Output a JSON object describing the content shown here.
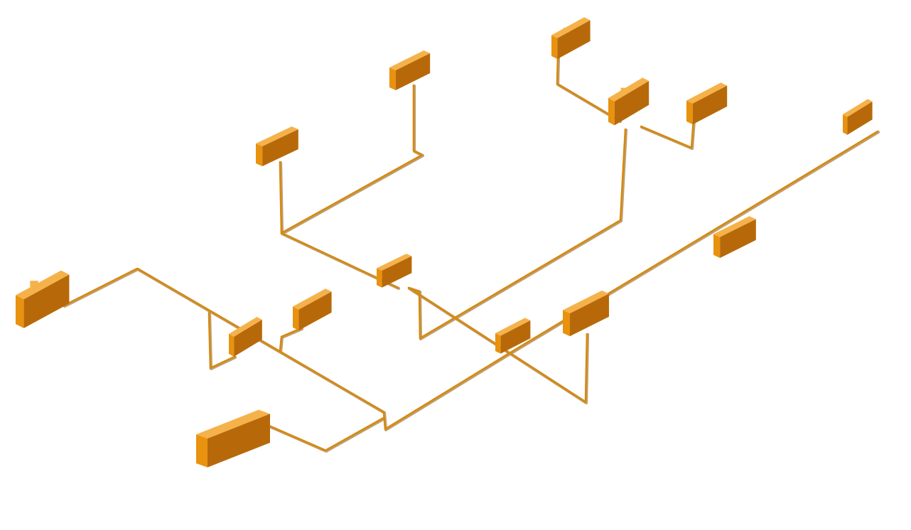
{
  "scene": {
    "description_kind": "isometric wiring harness of connectors joined by wire segments",
    "background_color": "#ffffff",
    "colors": {
      "wire": "#d68a10",
      "wire_shadow": "#8a5200",
      "connector_top": "#f6b24a",
      "connector_left": "#e9920f",
      "connector_right": "#a45e05"
    },
    "connector_count": 16,
    "wire_segment_count": 12
  }
}
